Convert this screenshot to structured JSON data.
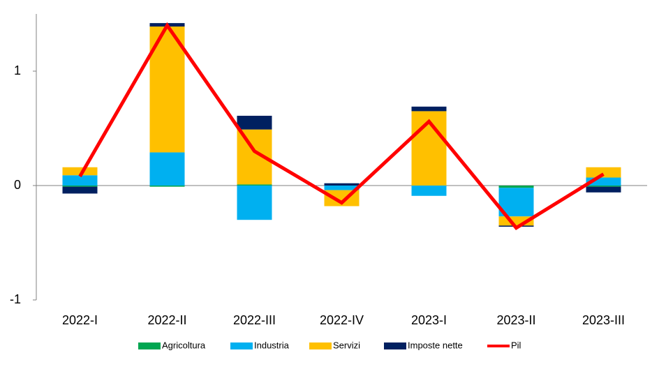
{
  "chart_data": {
    "type": "bar",
    "stacked": true,
    "categories": [
      "2022-I",
      "2022-II",
      "2022-III",
      "2022-IV",
      "2023-I",
      "2023-II",
      "2023-III"
    ],
    "series": [
      {
        "name": "Agricoltura",
        "color": "#00a651",
        "values": [
          -0.01,
          -0.01,
          0.01,
          0.0,
          0.0,
          -0.02,
          -0.01
        ]
      },
      {
        "name": "Industria",
        "color": "#00b0f0",
        "values": [
          0.09,
          0.29,
          -0.3,
          -0.04,
          -0.09,
          -0.25,
          0.07
        ]
      },
      {
        "name": "Servizi",
        "color": "#ffc000",
        "values": [
          0.07,
          1.1,
          0.48,
          -0.14,
          0.65,
          -0.08,
          0.09
        ]
      },
      {
        "name": "Imposte nette",
        "color": "#002060",
        "values": [
          -0.06,
          0.03,
          0.12,
          0.02,
          0.04,
          -0.01,
          -0.05
        ]
      },
      {
        "name": "Pil",
        "color": "#ff0000",
        "type": "line",
        "values": [
          0.08,
          1.4,
          0.3,
          -0.15,
          0.56,
          -0.37,
          0.1
        ]
      }
    ],
    "ylim": [
      -1,
      1.5
    ],
    "yticks": [
      -1,
      0,
      1
    ],
    "grid": false,
    "legend": "bottom"
  }
}
